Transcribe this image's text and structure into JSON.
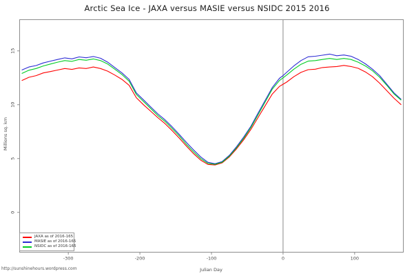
{
  "title": "Arctic Sea Ice - JAXA versus MASIE versus NSIDC 2015 2016",
  "footer": "http://sunshinehours.wordpress.com",
  "chart_data": {
    "type": "line",
    "title": "Arctic Sea Ice - JAXA versus MASIE versus NSIDC 2015 2016",
    "xlabel": "Julian Day",
    "ylabel": "Millions sq. km",
    "x_ticks": [
      -300,
      -200,
      -100,
      0,
      100
    ],
    "y_ticks": [
      0,
      5,
      10,
      15
    ],
    "xlim": [
      -368,
      168
    ],
    "ylim": [
      -3.7,
      17.9
    ],
    "grid": false,
    "legend_position": "bottom-left",
    "vline_x": 0,
    "axis_color": "#8c8c8c",
    "vline_color": "#888888",
    "tick_label_color": "#4a4a4a",
    "series": [
      {
        "name": "JAXA as of 2016-165",
        "color": "#ff0000",
        "points": [
          [
            -365,
            12.25
          ],
          [
            -355,
            12.55
          ],
          [
            -345,
            12.7
          ],
          [
            -335,
            12.95
          ],
          [
            -325,
            13.08
          ],
          [
            -315,
            13.22
          ],
          [
            -305,
            13.36
          ],
          [
            -295,
            13.28
          ],
          [
            -285,
            13.42
          ],
          [
            -275,
            13.36
          ],
          [
            -265,
            13.5
          ],
          [
            -255,
            13.36
          ],
          [
            -245,
            13.12
          ],
          [
            -235,
            12.75
          ],
          [
            -225,
            12.35
          ],
          [
            -215,
            11.8
          ],
          [
            -205,
            10.65
          ],
          [
            -195,
            10.0
          ],
          [
            -185,
            9.4
          ],
          [
            -175,
            8.8
          ],
          [
            -165,
            8.25
          ],
          [
            -155,
            7.6
          ],
          [
            -145,
            6.9
          ],
          [
            -135,
            6.15
          ],
          [
            -125,
            5.45
          ],
          [
            -115,
            4.85
          ],
          [
            -105,
            4.45
          ],
          [
            -95,
            4.4
          ],
          [
            -85,
            4.6
          ],
          [
            -75,
            5.15
          ],
          [
            -65,
            5.9
          ],
          [
            -55,
            6.75
          ],
          [
            -45,
            7.7
          ],
          [
            -35,
            8.8
          ],
          [
            -25,
            9.9
          ],
          [
            -15,
            11.0
          ],
          [
            -5,
            11.7
          ],
          [
            0,
            11.9
          ],
          [
            5,
            12.1
          ],
          [
            15,
            12.6
          ],
          [
            25,
            13.0
          ],
          [
            35,
            13.25
          ],
          [
            45,
            13.3
          ],
          [
            55,
            13.45
          ],
          [
            65,
            13.5
          ],
          [
            75,
            13.55
          ],
          [
            85,
            13.65
          ],
          [
            95,
            13.55
          ],
          [
            105,
            13.38
          ],
          [
            115,
            13.05
          ],
          [
            125,
            12.6
          ],
          [
            135,
            12.0
          ],
          [
            145,
            11.3
          ],
          [
            155,
            10.6
          ],
          [
            165,
            10.0
          ]
        ]
      },
      {
        "name": "MASIE as of 2016-165",
        "color": "#2a2ad4",
        "points": [
          [
            -365,
            13.22
          ],
          [
            -355,
            13.5
          ],
          [
            -345,
            13.64
          ],
          [
            -335,
            13.88
          ],
          [
            -325,
            14.05
          ],
          [
            -315,
            14.2
          ],
          [
            -305,
            14.35
          ],
          [
            -295,
            14.26
          ],
          [
            -285,
            14.44
          ],
          [
            -275,
            14.36
          ],
          [
            -265,
            14.48
          ],
          [
            -255,
            14.32
          ],
          [
            -245,
            13.95
          ],
          [
            -235,
            13.45
          ],
          [
            -225,
            12.95
          ],
          [
            -215,
            12.35
          ],
          [
            -205,
            11.1
          ],
          [
            -195,
            10.45
          ],
          [
            -185,
            9.8
          ],
          [
            -175,
            9.15
          ],
          [
            -165,
            8.6
          ],
          [
            -155,
            7.95
          ],
          [
            -145,
            7.25
          ],
          [
            -135,
            6.5
          ],
          [
            -125,
            5.8
          ],
          [
            -115,
            5.15
          ],
          [
            -105,
            4.65
          ],
          [
            -95,
            4.52
          ],
          [
            -85,
            4.72
          ],
          [
            -75,
            5.3
          ],
          [
            -65,
            6.1
          ],
          [
            -55,
            7.0
          ],
          [
            -45,
            8.0
          ],
          [
            -35,
            9.2
          ],
          [
            -25,
            10.4
          ],
          [
            -15,
            11.6
          ],
          [
            -5,
            12.45
          ],
          [
            0,
            12.7
          ],
          [
            5,
            13.0
          ],
          [
            15,
            13.6
          ],
          [
            25,
            14.1
          ],
          [
            35,
            14.45
          ],
          [
            45,
            14.5
          ],
          [
            55,
            14.6
          ],
          [
            65,
            14.7
          ],
          [
            75,
            14.55
          ],
          [
            85,
            14.62
          ],
          [
            95,
            14.5
          ],
          [
            105,
            14.2
          ],
          [
            115,
            13.8
          ],
          [
            125,
            13.3
          ],
          [
            135,
            12.7
          ],
          [
            145,
            11.9
          ],
          [
            155,
            11.1
          ],
          [
            165,
            10.5
          ]
        ]
      },
      {
        "name": "NSIDC as of 2016-165",
        "color": "#00cc22",
        "points": [
          [
            -365,
            12.9
          ],
          [
            -355,
            13.2
          ],
          [
            -345,
            13.36
          ],
          [
            -335,
            13.6
          ],
          [
            -325,
            13.78
          ],
          [
            -315,
            13.95
          ],
          [
            -305,
            14.1
          ],
          [
            -295,
            14.03
          ],
          [
            -285,
            14.2
          ],
          [
            -275,
            14.13
          ],
          [
            -265,
            14.25
          ],
          [
            -255,
            14.1
          ],
          [
            -245,
            13.78
          ],
          [
            -235,
            13.3
          ],
          [
            -225,
            12.8
          ],
          [
            -215,
            12.18
          ],
          [
            -205,
            10.95
          ],
          [
            -195,
            10.3
          ],
          [
            -185,
            9.65
          ],
          [
            -175,
            9.0
          ],
          [
            -165,
            8.45
          ],
          [
            -155,
            7.8
          ],
          [
            -145,
            7.1
          ],
          [
            -135,
            6.32
          ],
          [
            -125,
            5.62
          ],
          [
            -115,
            5.0
          ],
          [
            -105,
            4.55
          ],
          [
            -95,
            4.46
          ],
          [
            -85,
            4.66
          ],
          [
            -75,
            5.22
          ],
          [
            -65,
            6.0
          ],
          [
            -55,
            6.88
          ],
          [
            -45,
            7.88
          ],
          [
            -35,
            9.05
          ],
          [
            -25,
            10.25
          ],
          [
            -15,
            11.45
          ],
          [
            -5,
            12.25
          ],
          [
            0,
            12.5
          ],
          [
            5,
            12.75
          ],
          [
            15,
            13.3
          ],
          [
            25,
            13.75
          ],
          [
            35,
            14.05
          ],
          [
            45,
            14.1
          ],
          [
            55,
            14.2
          ],
          [
            65,
            14.3
          ],
          [
            75,
            14.2
          ],
          [
            85,
            14.3
          ],
          [
            95,
            14.2
          ],
          [
            105,
            13.95
          ],
          [
            115,
            13.6
          ],
          [
            125,
            13.15
          ],
          [
            135,
            12.55
          ],
          [
            145,
            11.8
          ],
          [
            155,
            11.0
          ],
          [
            165,
            10.42
          ]
        ]
      }
    ]
  }
}
